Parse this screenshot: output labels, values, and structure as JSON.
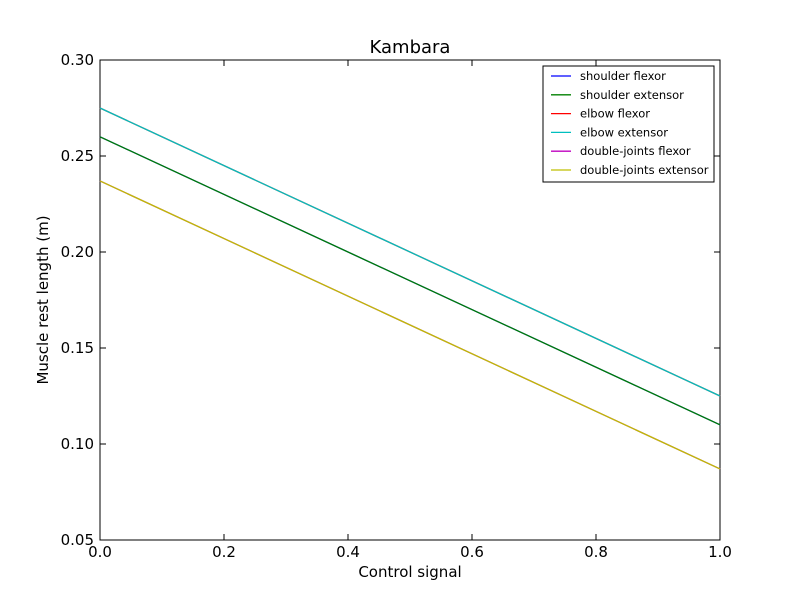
{
  "chart_data": {
    "type": "line",
    "title": "Kambara",
    "xlabel": "Control signal",
    "ylabel": "Muscle rest length (m)",
    "xlim": [
      0.0,
      1.0
    ],
    "ylim": [
      0.05,
      0.3
    ],
    "x_ticks": [
      "0.0",
      "0.2",
      "0.4",
      "0.6",
      "0.8",
      "1.0"
    ],
    "y_ticks": [
      "0.05",
      "0.10",
      "0.15",
      "0.20",
      "0.25",
      "0.30"
    ],
    "grid": false,
    "legend_position": "top-right",
    "x": [
      0.0,
      1.0
    ],
    "series": [
      {
        "name": "shoulder flexor",
        "color": "#0000ff",
        "values": [
          0.26,
          0.11
        ]
      },
      {
        "name": "shoulder extensor",
        "color": "#008000",
        "values": [
          0.26,
          0.11
        ]
      },
      {
        "name": "elbow flexor",
        "color": "#ff0000",
        "values": [
          0.275,
          0.125
        ]
      },
      {
        "name": "elbow extensor",
        "color": "#00bfbf",
        "values": [
          0.275,
          0.125
        ]
      },
      {
        "name": "double-joints flexor",
        "color": "#bf00bf",
        "values": [
          0.237,
          0.087
        ]
      },
      {
        "name": "double-joints extensor",
        "color": "#bfbf00",
        "values": [
          0.237,
          0.087
        ]
      }
    ]
  }
}
